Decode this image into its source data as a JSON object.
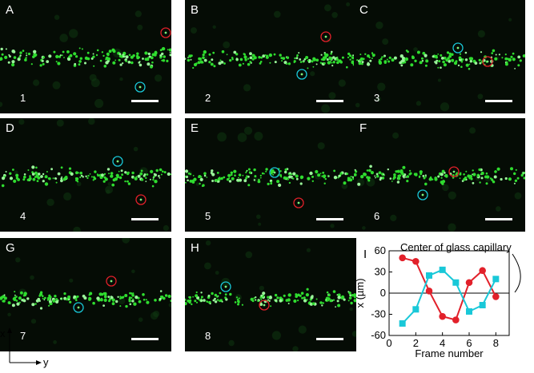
{
  "panels": [
    {
      "letter": "A",
      "frame": "1"
    },
    {
      "letter": "B",
      "frame": "2"
    },
    {
      "letter": "C",
      "frame": "3"
    },
    {
      "letter": "D",
      "frame": "4"
    },
    {
      "letter": "E",
      "frame": "5"
    },
    {
      "letter": "F",
      "frame": "6"
    },
    {
      "letter": "G",
      "frame": "7"
    },
    {
      "letter": "H",
      "frame": "8"
    }
  ],
  "axes_indicator": {
    "x": "x",
    "y": "y"
  },
  "colors": {
    "red": "#e2202a",
    "cyan": "#19c8d8",
    "background": "#050c05",
    "particles": "#2fdc2f"
  },
  "chart_data": {
    "type": "line",
    "panel_label": "I",
    "annotation": "Center of glass capillary",
    "xlabel": "Frame number",
    "ylabel": "x (µm)",
    "xlim": [
      0,
      9
    ],
    "ylim": [
      -60,
      60
    ],
    "xticks": [
      0,
      2,
      4,
      6,
      8
    ],
    "yticks": [
      60,
      30,
      0,
      -30,
      -60
    ],
    "series": [
      {
        "color": "#e2202a",
        "marker": "circle",
        "x": [
          1,
          2,
          3,
          4,
          5,
          6,
          7,
          8
        ],
        "values": [
          50,
          45,
          3,
          -33,
          -38,
          15,
          32,
          -5
        ]
      },
      {
        "color": "#19c8d8",
        "marker": "square",
        "x": [
          1,
          2,
          3,
          4,
          5,
          6,
          7,
          8
        ],
        "values": [
          -43,
          -23,
          25,
          33,
          15,
          -26,
          -17,
          20
        ]
      }
    ]
  }
}
